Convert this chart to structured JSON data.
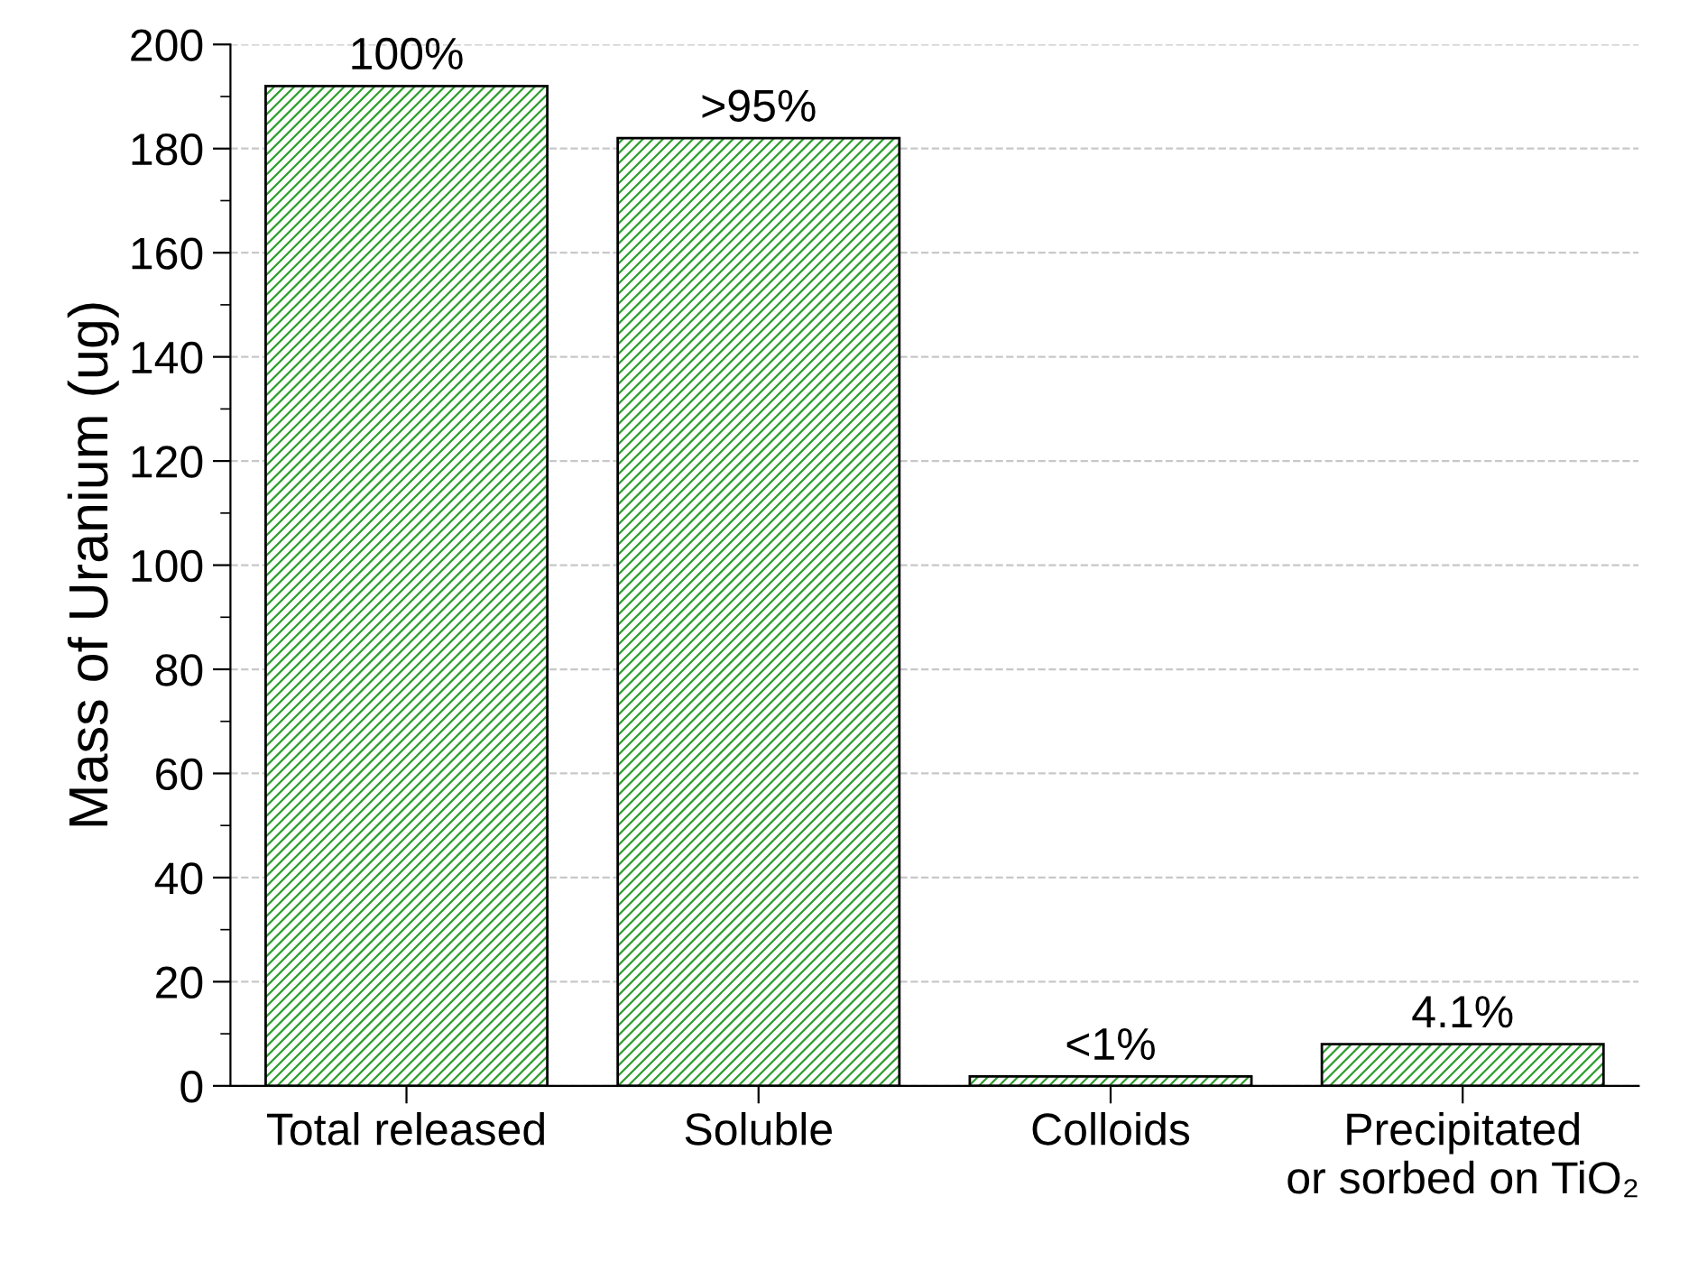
{
  "chart_data": {
    "type": "bar",
    "ylabel": "Mass of Uranium (ug)",
    "categories": [
      "Total released",
      "Soluble",
      "Colloids",
      "Precipitated\nor sorbed on TiO₂"
    ],
    "values": [
      192,
      182,
      1.8,
      8
    ],
    "annotations": [
      {
        "text": "100%",
        "x": "Total released",
        "y": 192
      },
      {
        "text": ">95%",
        "x": "Soluble",
        "y": 182
      },
      {
        "text": "<1%",
        "x": "Colloids",
        "y": 1.8
      },
      {
        "text": "4.1%",
        "x": "Precipitated\nor sorbed on TiO₂",
        "y": 8
      }
    ],
    "color": "#2e9e2e",
    "ylim": [
      0,
      200
    ],
    "yticks": [
      0,
      20,
      40,
      60,
      80,
      100,
      120,
      140,
      160,
      180,
      200
    ],
    "grid": "y"
  }
}
